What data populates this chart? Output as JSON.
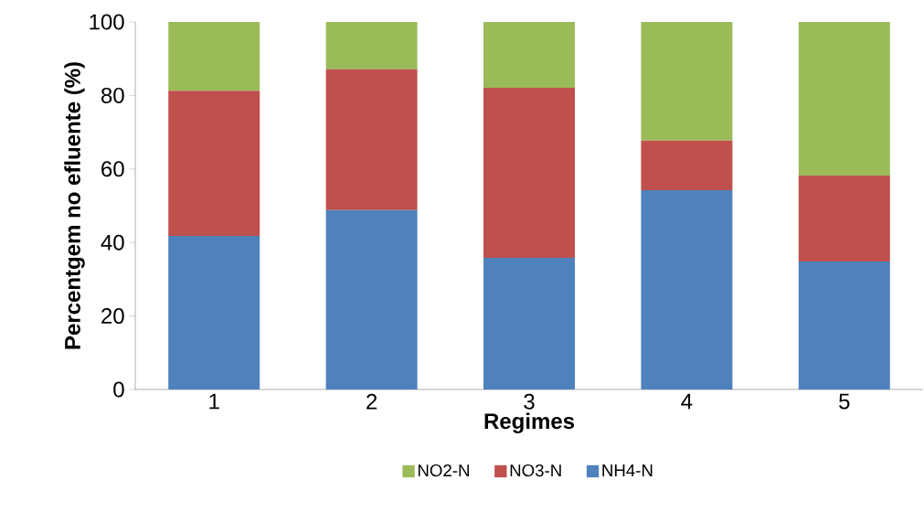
{
  "chart_data": {
    "type": "bar",
    "stacked": true,
    "xlabel": "Regimes",
    "ylabel": "Percentgem no efluente (%)",
    "categories": [
      "1",
      "2",
      "3",
      "4",
      "5"
    ],
    "series": [
      {
        "name": "NH4-N",
        "color": "#4f81bd",
        "values": [
          41.8,
          48.8,
          35.8,
          54.2,
          34.8
        ]
      },
      {
        "name": "NO3-N",
        "color": "#c0504d",
        "values": [
          39.5,
          38.3,
          46.3,
          13.5,
          23.4
        ]
      },
      {
        "name": "NO2-N",
        "color": "#9bbb59",
        "values": [
          18.7,
          12.9,
          17.9,
          32.3,
          41.8
        ]
      }
    ],
    "ylim": [
      0,
      100
    ],
    "yticks": [
      0,
      20,
      40,
      60,
      80,
      100
    ],
    "legend": "bottom"
  }
}
